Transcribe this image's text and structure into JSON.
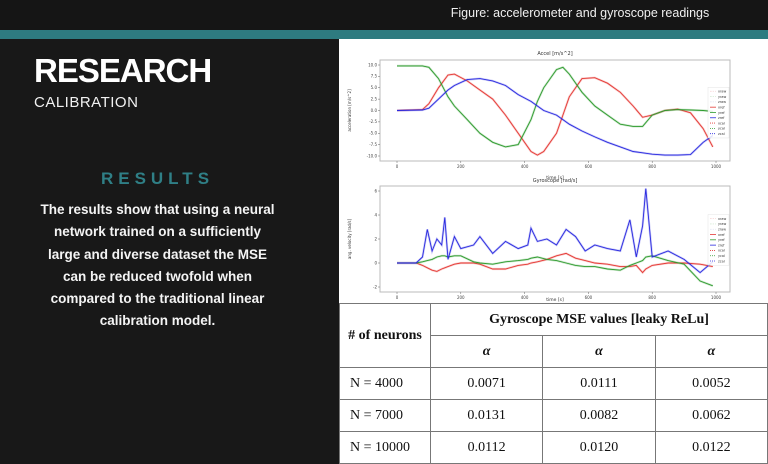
{
  "slide": {
    "figure_caption": "Figure: accelerometer and gyroscope readings",
    "title": "RESEARCH",
    "subtitle": "CALIBRATION",
    "results_heading": "RESULTS",
    "results_text": "The results show that using a neural network trained on a sufficiently large and diverse dataset the MSE can be reduced twofold when compared to the traditional linear calibration model.",
    "colors": {
      "background": "#181818",
      "accent": "#2e7b80",
      "heading": "#2f7f86",
      "text": "#f4f4f4"
    }
  },
  "table": {
    "row_header": "# of neurons",
    "group_header": "Gyroscope MSE values [leaky ReLu]",
    "sub_headers": [
      "α",
      "α",
      "α"
    ],
    "rows": [
      {
        "label": "N = 4000",
        "values": [
          "0.0071",
          "0.0111",
          "0.0052"
        ]
      },
      {
        "label": "N = 7000",
        "values": [
          "0.0131",
          "0.0082",
          "0.0062"
        ]
      },
      {
        "label": "N = 10000",
        "values": [
          "0.0112",
          "0.0120",
          "0.0122"
        ]
      }
    ]
  },
  "chart_data": [
    {
      "type": "line",
      "title": "Accel [m/s^2]",
      "xlabel": "time [s]",
      "ylabel": "acceleration [m/s^2]",
      "xlim": [
        0,
        1000
      ],
      "ylim": [
        -10.0,
        10.0
      ],
      "xticks": [
        "0",
        "200",
        "400",
        "600",
        "800",
        "1000"
      ],
      "yticks": [
        "10.0",
        "7.5",
        "5.0",
        "2.5",
        "0.0",
        "-2.5",
        "-5.0",
        "-7.5",
        "-10.0"
      ],
      "legend": [
        "xraw",
        "yraw",
        "zraw",
        "xref",
        "yref",
        "zref",
        "xcal",
        "ycal",
        "zcal"
      ],
      "legend_position": "right",
      "grid": false,
      "x": [
        0,
        80,
        100,
        130,
        160,
        180,
        220,
        260,
        300,
        340,
        380,
        420,
        440,
        460,
        500,
        520,
        540,
        580,
        620,
        660,
        700,
        740,
        770,
        800,
        840,
        880,
        920,
        960,
        990
      ],
      "series": [
        {
          "name": "xref",
          "color": "#e53935",
          "values": [
            0,
            0.2,
            1.5,
            5,
            7.8,
            8,
            6.5,
            4.5,
            2.5,
            -1,
            -5,
            -9,
            -9.8,
            -9,
            -5,
            -1,
            3,
            7,
            7.2,
            6,
            4,
            1,
            -1.5,
            -1,
            0,
            0.3,
            -0.5,
            -4,
            -8
          ]
        },
        {
          "name": "yref",
          "color": "#2e9b2e",
          "values": [
            9.8,
            9.8,
            9.5,
            7,
            3,
            1,
            -2,
            -5,
            -7,
            -8,
            -7.5,
            -2,
            2,
            5,
            9,
            9.5,
            8,
            4,
            1,
            -1,
            -3,
            -3.5,
            -3.5,
            -1,
            0,
            0.2,
            0.1,
            0,
            -0.2
          ]
        },
        {
          "name": "zref",
          "color": "#2a2ae0",
          "values": [
            0,
            0.1,
            0.5,
            2.5,
            4.5,
            5.5,
            6.8,
            7,
            6.5,
            5.5,
            3.5,
            2,
            1,
            0,
            -1,
            -2,
            -3,
            -4.5,
            -5.8,
            -7,
            -8,
            -9,
            -9.3,
            -9.6,
            -9.8,
            -9.8,
            -9.7,
            -7,
            -5.5
          ]
        }
      ]
    },
    {
      "type": "line",
      "title": "Gyroscope [rad/s]",
      "xlabel": "time [s]",
      "ylabel": "ang. velocity [rad/s]",
      "xlim": [
        0,
        1000
      ],
      "ylim": [
        -2,
        6
      ],
      "xticks": [
        "0",
        "200",
        "400",
        "600",
        "800",
        "1000"
      ],
      "yticks": [
        "6",
        "4",
        "2",
        "0",
        "-2"
      ],
      "legend": [
        "xraw",
        "yraw",
        "zraw",
        "xref",
        "yref",
        "zref",
        "xcal",
        "ycal",
        "zcal"
      ],
      "legend_position": "right",
      "grid": false,
      "x": [
        0,
        60,
        80,
        95,
        110,
        125,
        140,
        150,
        160,
        180,
        200,
        240,
        260,
        300,
        340,
        380,
        410,
        420,
        440,
        470,
        500,
        530,
        560,
        590,
        620,
        660,
        700,
        730,
        750,
        770,
        780,
        800,
        850,
        900,
        950,
        990
      ],
      "series": [
        {
          "name": "xref",
          "color": "#e53935",
          "values": [
            0,
            0,
            -0.2,
            -0.4,
            -0.6,
            -0.7,
            -0.5,
            -0.4,
            -0.3,
            -0.1,
            0,
            0,
            -0.1,
            -0.5,
            -0.5,
            -0.2,
            -0.1,
            0,
            0.1,
            0.3,
            0.6,
            0.8,
            0.4,
            0.2,
            0,
            -0.1,
            -0.3,
            -0.3,
            -0.2,
            -0.8,
            -0.5,
            -0.2,
            0,
            0,
            -0.1,
            -0.3
          ]
        },
        {
          "name": "yref",
          "color": "#2e9b2e",
          "values": [
            0,
            0,
            0.1,
            0.2,
            0.3,
            0.5,
            0.6,
            0.6,
            0.5,
            0.6,
            0.6,
            0.1,
            0,
            -0.1,
            0.1,
            0.2,
            0.3,
            0.4,
            0.5,
            0.3,
            0.2,
            0,
            -0.2,
            -0.3,
            -0.3,
            -0.5,
            -0.6,
            -0.2,
            0,
            0.2,
            0.5,
            0.6,
            0.2,
            -0.1,
            -1.5,
            -1.9
          ]
        },
        {
          "name": "zref",
          "color": "#2a2ae0",
          "values": [
            0,
            0,
            0.5,
            2.8,
            1,
            2,
            1.5,
            3.8,
            0.3,
            2.2,
            1.2,
            1.5,
            2.2,
            0.8,
            1.8,
            1.2,
            1.5,
            2.9,
            1.8,
            2.0,
            1.5,
            2.8,
            2.2,
            1.0,
            1.5,
            1.2,
            1.0,
            3.6,
            0.5,
            3.1,
            6.2,
            0.5,
            1.0,
            0.3,
            -0.8,
            0.1
          ]
        }
      ]
    }
  ]
}
